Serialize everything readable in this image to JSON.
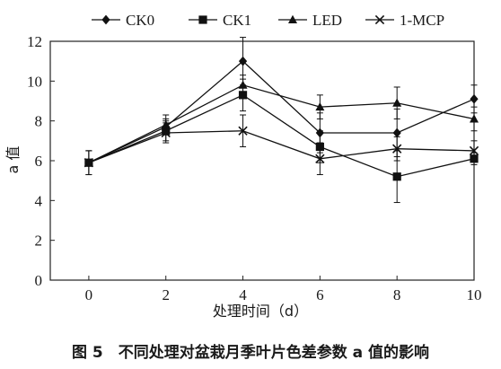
{
  "chart_data": {
    "type": "line",
    "x": [
      0,
      2,
      4,
      6,
      8,
      10
    ],
    "xlabel": "处理时间（d）",
    "ylabel": "a 值",
    "xlim": [
      -1,
      10
    ],
    "ylim": [
      0,
      12
    ],
    "xticks": [
      "0",
      "2",
      "4",
      "6",
      "8",
      "10"
    ],
    "yticks": [
      "0",
      "2",
      "4",
      "6",
      "8",
      "10",
      "12"
    ],
    "caption": "图 5　不同处理对盆栽月季叶片色差参数 a 值的影响",
    "legend_position": "top",
    "grid": false,
    "series": [
      {
        "name": "CK0",
        "marker": "diamond",
        "values": [
          5.9,
          7.7,
          11.0,
          7.4,
          7.4,
          9.1
        ],
        "errors": [
          0.6,
          0.4,
          1.2,
          1.0,
          1.2,
          0.7
        ]
      },
      {
        "name": "CK1",
        "marker": "square",
        "values": [
          5.9,
          7.5,
          9.3,
          6.7,
          5.2,
          6.1
        ],
        "errors": [
          0.6,
          0.5,
          0.8,
          0.8,
          1.3,
          0.3
        ]
      },
      {
        "name": "LED",
        "marker": "triangle",
        "values": [
          5.9,
          7.8,
          9.8,
          8.7,
          8.9,
          8.1
        ],
        "errors": [
          0.6,
          0.5,
          0.5,
          0.6,
          0.8,
          0.6
        ]
      },
      {
        "name": "1-MCP",
        "marker": "x",
        "values": [
          5.9,
          7.4,
          7.5,
          6.1,
          6.6,
          6.5
        ],
        "errors": [
          0.6,
          0.5,
          0.8,
          0.8,
          0.6,
          0.5
        ]
      }
    ]
  }
}
